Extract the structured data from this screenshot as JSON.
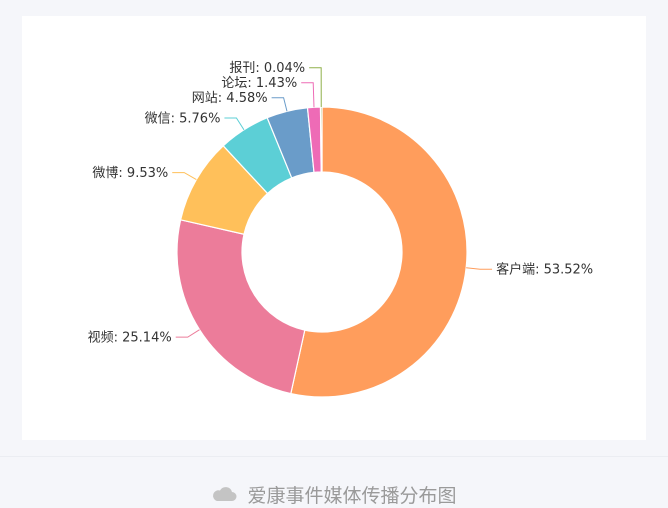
{
  "chart_data": {
    "type": "pie",
    "donut": true,
    "slices": [
      {
        "label": "客户端",
        "value": 53.52,
        "display": "客户端: 53.52%",
        "color": "#ff9d5c"
      },
      {
        "label": "视频",
        "value": 25.14,
        "display": "视频: 25.14%",
        "color": "#ec7c9a"
      },
      {
        "label": "微博",
        "value": 9.53,
        "display": "微博: 9.53%",
        "color": "#ffc05a"
      },
      {
        "label": "微信",
        "value": 5.76,
        "display": "微信: 5.76%",
        "color": "#5ccfd6"
      },
      {
        "label": "网站",
        "value": 4.58,
        "display": "网站: 4.58%",
        "color": "#6a9cc9"
      },
      {
        "label": "论坛",
        "value": 1.43,
        "display": "论坛: 1.43%",
        "color": "#ee6bb6"
      },
      {
        "label": "报刊",
        "value": 0.04,
        "display": "报刊: 0.04%",
        "color": "#8fb04a"
      }
    ]
  },
  "caption": {
    "icon": "cloud-icon",
    "text": "爱康事件媒体传播分布图"
  }
}
